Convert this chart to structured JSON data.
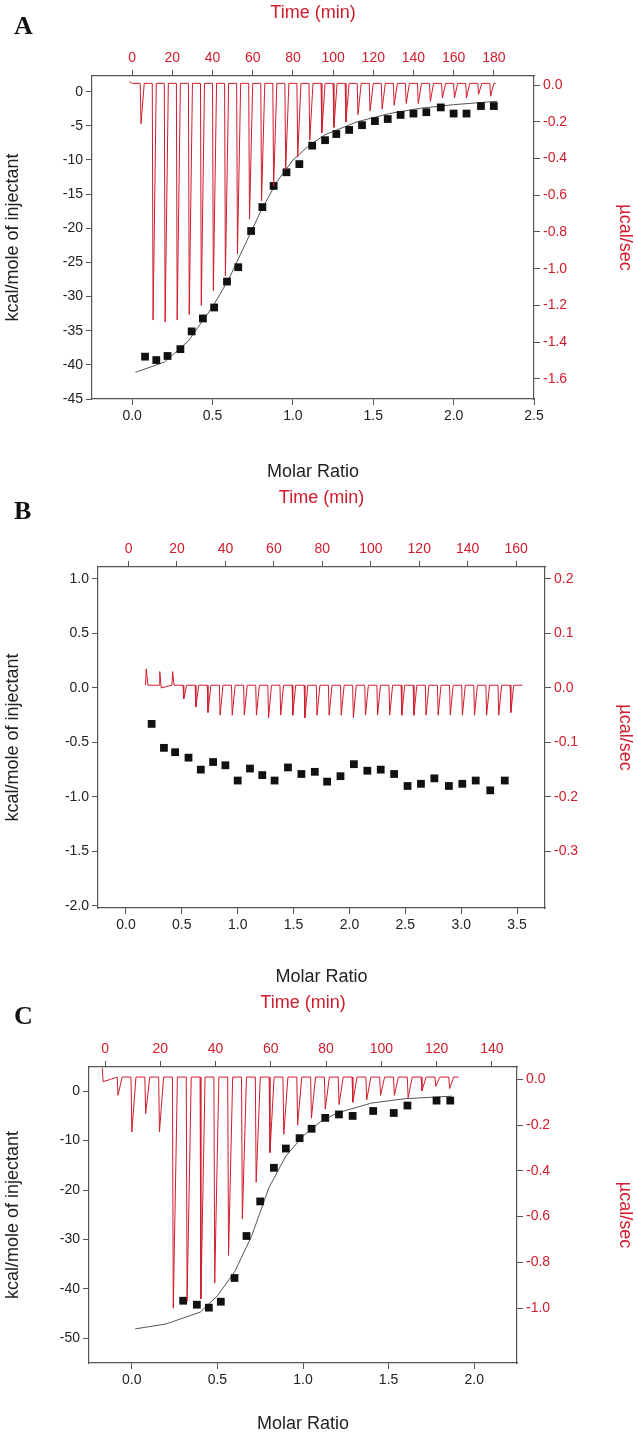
{
  "chart_data": [
    {
      "type": "scatter",
      "title": "A",
      "xlabel": "Molar Ratio",
      "ylabel": "kcal/mole of injectant",
      "xlim": [
        -0.25,
        2.5
      ],
      "xticks": [
        {
          "value": 0,
          "label": "0.0"
        },
        0.5,
        {
          "value": 1,
          "label": "1.0"
        },
        1.5,
        {
          "value": 2,
          "label": "2.0"
        },
        2.5
      ],
      "ylim": [
        -45,
        2.3
      ],
      "yticks": [
        -45,
        -40,
        -35,
        -30,
        -25,
        -20,
        -15,
        -10,
        -5,
        0
      ],
      "series": [
        {
          "type": "scatter",
          "color": "#111111",
          "marker": "square",
          "x": [
            0.08,
            0.15,
            0.22,
            0.3,
            0.37,
            0.44,
            0.51,
            0.59,
            0.66,
            0.74,
            0.81,
            0.88,
            0.96,
            1.04,
            1.12,
            1.2,
            1.27,
            1.35,
            1.43,
            1.51,
            1.59,
            1.67,
            1.75,
            1.83,
            1.92,
            2.0,
            2.08,
            2.17,
            2.25
          ],
          "values": [
            -38.8,
            -39.3,
            -38.7,
            -37.7,
            -35.1,
            -33.2,
            -31.6,
            -27.8,
            -25.7,
            -20.4,
            -16.9,
            -13.8,
            -11.8,
            -10.6,
            -7.9,
            -7.1,
            -6.2,
            -5.6,
            -4.9,
            -4.3,
            -4.0,
            -3.4,
            -3.2,
            -3.0,
            -2.3,
            -3.2,
            -3.2,
            -2.1,
            -2.1
          ]
        },
        {
          "type": "line",
          "color": "#555555",
          "x": [
            0.02,
            0.2,
            0.35,
            0.5,
            0.6,
            0.7,
            0.8,
            0.9,
            1.0,
            1.1,
            1.2,
            1.4,
            1.6,
            1.8,
            2.0,
            2.27
          ],
          "values": [
            -41.1,
            -39.6,
            -36.5,
            -31.5,
            -27.5,
            -22.5,
            -17.5,
            -13.2,
            -10.0,
            -7.9,
            -6.3,
            -4.4,
            -3.2,
            -2.4,
            -1.9,
            -1.4
          ]
        }
      ]
    },
    {
      "type": "line",
      "xlabel": "Time (min)",
      "ylabel": "µcal/sec",
      "xlim": [
        -20,
        200
      ],
      "xticks": [
        0,
        20,
        40,
        60,
        80,
        100,
        120,
        140,
        160,
        180
      ],
      "ylim": [
        -1.71,
        0.05
      ],
      "yticks": [
        {
          "value": -1.6,
          "label": "-1.6"
        },
        {
          "value": -1.4,
          "label": "-1.4"
        },
        {
          "value": -1.2,
          "label": "-1.2"
        },
        {
          "value": -1,
          "label": "-1.0"
        },
        {
          "value": -0.8,
          "label": "-0.8"
        },
        {
          "value": -0.6,
          "label": "-0.6"
        },
        {
          "value": -0.4,
          "label": "-0.4"
        },
        {
          "value": -0.2,
          "label": "-0.2"
        },
        {
          "value": 0,
          "label": "0.0"
        }
      ],
      "series": [
        {
          "color": "#d01c2c",
          "x": [
            -1.5,
            0,
            4,
            4.4,
            6,
            10,
            10.4,
            12,
            16,
            16.4,
            18,
            22,
            22.4,
            24,
            28,
            28.4,
            30,
            34,
            34.4,
            36,
            40,
            40.4,
            42,
            46,
            46.4,
            48,
            52,
            52.4,
            54,
            58,
            58.4,
            60,
            64,
            64.4,
            66,
            70,
            70.4,
            72,
            76,
            76.4,
            78,
            82,
            82.4,
            84,
            88,
            88.4,
            90,
            94,
            94.4,
            96,
            100,
            100.4,
            102,
            106,
            106.4,
            108,
            112,
            112.4,
            114,
            118,
            118.4,
            120,
            124,
            124.4,
            126,
            130,
            130.4,
            132,
            136,
            136.4,
            138,
            142,
            142.4,
            144,
            148,
            148.4,
            150,
            154,
            154.4,
            156,
            160,
            160.4,
            162,
            166,
            166.4,
            168,
            172,
            172.4,
            174,
            178,
            178.4,
            180,
            181
          ],
          "values": [
            0.02,
            0.01,
            0.01,
            -0.21,
            0.01,
            0.01,
            -1.28,
            0.01,
            0.01,
            -1.29,
            0.01,
            0.01,
            -1.28,
            0.01,
            0.01,
            -1.25,
            0.01,
            0.01,
            -1.2,
            0.01,
            0.01,
            -1.12,
            0.01,
            0.01,
            -1.04,
            0.01,
            0.01,
            -0.92,
            0.01,
            0.01,
            -0.73,
            0.01,
            0.01,
            -0.63,
            0.01,
            0.01,
            -0.55,
            0.01,
            0.01,
            -0.46,
            0.01,
            0.01,
            -0.39,
            0.01,
            0.01,
            -0.3,
            0.01,
            0.01,
            -0.26,
            0.01,
            0.01,
            -0.23,
            0.01,
            0.01,
            -0.2,
            0.01,
            0.01,
            -0.16,
            0.01,
            0.01,
            -0.14,
            0.01,
            0.01,
            -0.13,
            0.01,
            0.01,
            -0.11,
            0.01,
            0.01,
            -0.1,
            0.01,
            0.01,
            -0.1,
            0.01,
            0.01,
            -0.09,
            0.01,
            0.01,
            -0.07,
            0.01,
            0.01,
            -0.07,
            0.01,
            0.01,
            -0.07,
            0.01,
            0.01,
            -0.05,
            0.01,
            0.01,
            -0.06,
            0.01,
            0.01
          ]
        }
      ]
    },
    {
      "type": "scatter",
      "title": "B",
      "xlabel": "Molar Ratio",
      "ylabel": "kcal/mole of injectant",
      "xlim": [
        -0.25,
        3.75
      ],
      "xticks": [
        {
          "value": 0,
          "label": "0.0"
        },
        0.5,
        {
          "value": 1,
          "label": "1.0"
        },
        1.5,
        {
          "value": 2,
          "label": "2.0"
        },
        2.5,
        {
          "value": 3,
          "label": "3.0"
        },
        3.5
      ],
      "ylim": [
        -2.02,
        1.11
      ],
      "yticks": [
        {
          "value": -2,
          "label": "-2.0"
        },
        -1.5,
        {
          "value": -1,
          "label": "-1.0"
        },
        -0.5,
        {
          "value": 0,
          "label": "0.0"
        },
        0.5,
        {
          "value": 1,
          "label": "1.0"
        }
      ],
      "series": [
        {
          "type": "scatter",
          "color": "#111111",
          "marker": "square",
          "x": [
            0.23,
            0.34,
            0.44,
            0.56,
            0.67,
            0.78,
            0.89,
            1.0,
            1.11,
            1.22,
            1.33,
            1.45,
            1.57,
            1.69,
            1.8,
            1.92,
            2.04,
            2.16,
            2.28,
            2.4,
            2.52,
            2.64,
            2.76,
            2.89,
            3.01,
            3.13,
            3.26,
            3.39
          ],
          "values": [
            -0.33,
            -0.55,
            -0.59,
            -0.64,
            -0.75,
            -0.68,
            -0.71,
            -0.85,
            -0.74,
            -0.8,
            -0.85,
            -0.73,
            -0.79,
            -0.77,
            -0.86,
            -0.81,
            -0.7,
            -0.76,
            -0.75,
            -0.79,
            -0.9,
            -0.88,
            -0.83,
            -0.9,
            -0.88,
            -0.85,
            -0.94,
            -0.85
          ]
        }
      ]
    },
    {
      "type": "line",
      "xlabel": "Time (min)",
      "ylabel": "µcal/sec",
      "xlim": [
        -12.6,
        171.9
      ],
      "xticks": [
        0,
        20,
        40,
        60,
        80,
        100,
        120,
        140,
        160
      ],
      "ylim": [
        -0.404,
        0.222
      ],
      "yticks": [
        -0.3,
        -0.2,
        -0.1,
        {
          "value": 0,
          "label": "0.0"
        },
        0.1,
        0.2
      ],
      "series": [
        {
          "color": "#d01c2c",
          "x": [
            7,
            7.3,
            8,
            12.6,
            12.9,
            13.5,
            17.9,
            18.2,
            18.8,
            22.5,
            22.8,
            24,
            27.5,
            27.8,
            29,
            32.5,
            32.8,
            34,
            37.5,
            37.8,
            39,
            42.5,
            42.8,
            44,
            47.5,
            47.8,
            49,
            52.5,
            52.8,
            54,
            57.5,
            57.8,
            59,
            62.5,
            62.8,
            64,
            67.5,
            67.8,
            69,
            72.5,
            72.8,
            74,
            77.5,
            77.8,
            79,
            82.5,
            82.8,
            84,
            87.5,
            87.8,
            89,
            92.5,
            92.8,
            94,
            97.5,
            97.8,
            99,
            102.5,
            102.8,
            104,
            107.5,
            107.8,
            109,
            112.5,
            112.8,
            114,
            117.5,
            117.8,
            119,
            122.5,
            122.8,
            124,
            127.5,
            127.8,
            129,
            132.5,
            132.8,
            134,
            137.5,
            137.8,
            139,
            142.5,
            142.8,
            144,
            147.5,
            147.8,
            149,
            152.5,
            152.8,
            154,
            157.5,
            157.8,
            159,
            162.5
          ],
          "values": [
            0.005,
            0.035,
            0.005,
            0.005,
            0.03,
            0.0,
            0.005,
            0.03,
            0.005,
            0.005,
            -0.02,
            0.005,
            0.005,
            -0.035,
            0.005,
            0.005,
            -0.045,
            0.005,
            0.005,
            -0.05,
            0.005,
            0.005,
            -0.05,
            0.005,
            0.005,
            -0.05,
            0.005,
            0.005,
            -0.05,
            0.005,
            0.005,
            -0.055,
            0.005,
            0.005,
            -0.05,
            0.005,
            0.005,
            -0.05,
            0.005,
            0.005,
            -0.055,
            0.005,
            0.005,
            -0.05,
            0.005,
            0.005,
            -0.05,
            0.005,
            0.005,
            -0.05,
            0.005,
            0.005,
            -0.055,
            0.005,
            0.005,
            -0.05,
            0.005,
            0.005,
            -0.05,
            0.005,
            0.005,
            -0.05,
            0.005,
            0.005,
            -0.05,
            0.005,
            0.005,
            -0.05,
            0.005,
            0.005,
            -0.05,
            0.005,
            0.005,
            -0.05,
            0.005,
            0.005,
            -0.05,
            0.005,
            0.005,
            -0.05,
            0.005,
            0.005,
            -0.05,
            0.005,
            0.005,
            -0.05,
            0.005,
            0.005,
            -0.05,
            0.005,
            0.005,
            -0.045,
            0.005,
            0.005
          ]
        }
      ]
    },
    {
      "type": "scatter",
      "title": "C",
      "xlabel": "Molar Ratio",
      "ylabel": "kcal/mole of injectant",
      "xlim": [
        -0.25,
        2.25
      ],
      "xticks": [
        {
          "value": 0,
          "label": "0.0"
        },
        0.5,
        {
          "value": 1,
          "label": "1.0"
        },
        1.5,
        {
          "value": 2,
          "label": "2.0"
        }
      ],
      "ylim": [
        -55,
        4.9
      ],
      "yticks": [
        -50,
        -40,
        -30,
        -20,
        -10,
        0
      ],
      "series": [
        {
          "type": "scatter",
          "color": "#111111",
          "marker": "square",
          "x": [
            0.3,
            0.38,
            0.45,
            0.52,
            0.6,
            0.67,
            0.75,
            0.83,
            0.9,
            0.98,
            1.05,
            1.13,
            1.21,
            1.29,
            1.41,
            1.53,
            1.61,
            1.78,
            1.86
          ],
          "values": [
            -42.4,
            -43.2,
            -43.8,
            -42.6,
            -37.8,
            -29.3,
            -22.3,
            -15.5,
            -11.6,
            -9.5,
            -7.6,
            -5.4,
            -4.7,
            -5.0,
            -4.0,
            -4.4,
            -2.9,
            -1.9,
            -1.9
          ]
        },
        {
          "type": "line",
          "color": "#555555",
          "x": [
            0.02,
            0.2,
            0.4,
            0.5,
            0.6,
            0.7,
            0.8,
            0.9,
            1.0,
            1.1,
            1.2,
            1.4,
            1.6,
            1.87
          ],
          "values": [
            -48.1,
            -47.1,
            -44.7,
            -41.4,
            -36.6,
            -29.3,
            -19.6,
            -13.1,
            -9.1,
            -6.2,
            -4.4,
            -2.4,
            -1.5,
            -1.0
          ]
        }
      ]
    },
    {
      "type": "line",
      "xlabel": "Time (min)",
      "ylabel": "µcal/sec",
      "xlim": [
        -5.8,
        149.1
      ],
      "xticks": [
        0,
        20,
        40,
        60,
        80,
        100,
        120,
        140
      ],
      "ylim": [
        -1.24,
        0.054
      ],
      "yticks": [
        {
          "value": -1,
          "label": "-1.0"
        },
        -0.8,
        -0.6,
        -0.4,
        -0.2,
        {
          "value": 0,
          "label": "0.0"
        }
      ],
      "series": [
        {
          "color": "#d01c2c",
          "x": [
            -1,
            -0.7,
            2,
            4.4,
            4.7,
            6.2,
            9.4,
            9.7,
            11.2,
            14.4,
            14.7,
            16.2,
            19.4,
            19.7,
            21.2,
            24.4,
            24.7,
            26.2,
            29.4,
            29.7,
            31.2,
            34.4,
            34.7,
            36.2,
            39.4,
            39.7,
            41.2,
            44.4,
            44.7,
            46.2,
            49.4,
            49.7,
            51.2,
            54.4,
            54.7,
            56.2,
            59.4,
            59.7,
            61.2,
            64.4,
            64.7,
            66.2,
            69.4,
            69.7,
            71.2,
            74.4,
            74.7,
            76.2,
            79.4,
            79.7,
            81.2,
            84.4,
            84.7,
            86.2,
            89.4,
            89.7,
            91.2,
            94.4,
            94.7,
            96.2,
            99.4,
            99.7,
            101.2,
            104.4,
            104.7,
            106.2,
            109.4,
            109.7,
            111.2,
            114.4,
            114.7,
            116.2,
            119.4,
            119.7,
            121.2,
            124.4,
            124.7,
            126.2,
            128
          ],
          "values": [
            0.05,
            -0.01,
            0.0,
            0.01,
            -0.07,
            0.01,
            0.01,
            -0.23,
            0.01,
            0.01,
            -0.15,
            0.01,
            0.01,
            -0.23,
            0.01,
            0.01,
            -1.0,
            0.01,
            0.01,
            -0.97,
            0.01,
            0.01,
            -0.96,
            0.01,
            0.01,
            -0.89,
            0.01,
            0.01,
            -0.77,
            0.01,
            0.01,
            -0.61,
            0.01,
            0.01,
            -0.45,
            0.01,
            0.01,
            -0.32,
            0.01,
            0.01,
            -0.24,
            0.01,
            0.01,
            -0.2,
            0.01,
            0.01,
            -0.17,
            0.01,
            0.01,
            -0.13,
            0.01,
            0.01,
            -0.11,
            0.01,
            0.01,
            -0.1,
            0.01,
            0.01,
            -0.09,
            0.01,
            0.01,
            -0.07,
            0.01,
            0.01,
            -0.07,
            0.01,
            0.01,
            -0.08,
            0.01,
            0.01,
            -0.05,
            0.01,
            0.01,
            -0.03,
            0.01,
            0.01,
            -0.04,
            0.01,
            0.01
          ]
        }
      ]
    }
  ]
}
